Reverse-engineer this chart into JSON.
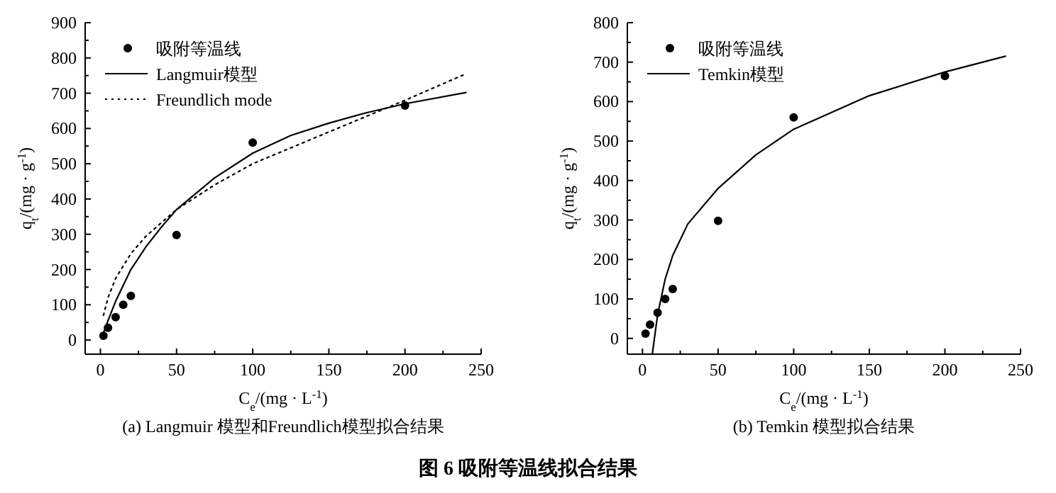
{
  "chart_data": [
    {
      "type": "scatter",
      "xlabel": "C$_{e}$/(mg · L$^{-1}$)",
      "ylabel": "q$_{t}$/(mg · g$^{-1}$)",
      "xlim": [
        -10,
        250
      ],
      "ylim": [
        -40,
        900
      ],
      "xticks": [
        0,
        50,
        100,
        150,
        200,
        250
      ],
      "yticks": [
        0,
        100,
        200,
        300,
        400,
        500,
        600,
        700,
        800,
        900
      ],
      "legend": "top left",
      "annotations": [
        "(a) Langmuir 模型和Freundlich模型拟合结果",
        "图 6   吸附等温线拟合结果"
      ],
      "series": [
        {
          "name": "吸附等温线",
          "type": "scatter",
          "marker": "circle",
          "color": "#000000",
          "x": [
            2,
            5,
            10,
            15,
            20,
            50,
            100,
            200
          ],
          "values": [
            12,
            35,
            65,
            100,
            125,
            298,
            560,
            665
          ]
        },
        {
          "name": "Langmuir模型",
          "type": "line",
          "line_style": "solid",
          "color": "#000000",
          "x": [
            2,
            5,
            10,
            20,
            30,
            40,
            50,
            75,
            100,
            125,
            150,
            175,
            200,
            240
          ],
          "values": [
            20,
            55,
            110,
            200,
            265,
            320,
            370,
            460,
            530,
            580,
            615,
            645,
            670,
            702
          ]
        },
        {
          "name": "Freundlich mode",
          "type": "line",
          "line_style": "dotted",
          "color": "#000000",
          "x": [
            2,
            5,
            10,
            20,
            30,
            50,
            75,
            100,
            150,
            200,
            240
          ],
          "values": [
            70,
            120,
            175,
            245,
            295,
            370,
            440,
            500,
            590,
            680,
            755
          ]
        }
      ]
    },
    {
      "type": "scatter",
      "xlabel": "C$_{e}$/(mg · L$^{-1}$)",
      "ylabel": "q$_{t}$/(mg · g$^{-1}$)",
      "xlim": [
        -10,
        250
      ],
      "ylim": [
        -40,
        800
      ],
      "xticks": [
        0,
        50,
        100,
        150,
        200,
        250
      ],
      "yticks": [
        0,
        100,
        200,
        300,
        400,
        500,
        600,
        700,
        800
      ],
      "legend": "top left",
      "annotations": [
        "(b) Temkin 模型拟合结果"
      ],
      "series": [
        {
          "name": "吸附等温线",
          "type": "scatter",
          "marker": "circle",
          "color": "#000000",
          "x": [
            2,
            5,
            10,
            15,
            20,
            50,
            100,
            200
          ],
          "values": [
            12,
            35,
            65,
            100,
            125,
            298,
            560,
            665
          ]
        },
        {
          "name": "Temkin模型",
          "type": "line",
          "line_style": "solid",
          "color": "#000000",
          "x": [
            6.5,
            10,
            15,
            20,
            30,
            50,
            75,
            100,
            150,
            200,
            240
          ],
          "values": [
            -40,
            60,
            150,
            210,
            290,
            380,
            465,
            530,
            615,
            675,
            715
          ]
        }
      ]
    }
  ]
}
